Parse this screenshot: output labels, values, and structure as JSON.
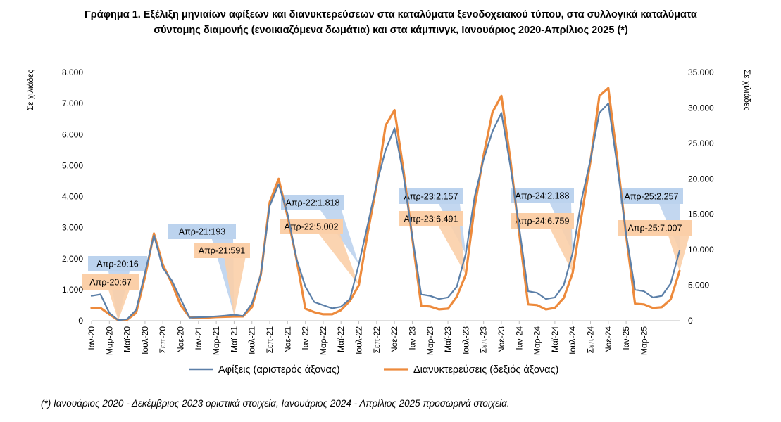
{
  "title_line1": "Γράφημα 1. Εξέλιξη μηνιαίων αφίξεων και διανυκτερεύσεων στα καταλύματα ξενοδοχειακού τύπου, στα συλλογικά καταλύματα",
  "title_line2": "σύντομης διαμονής (ενοικιαζόμενα δωμάτια) και στα κάμπινγκ, Ιανουάριος 2020-Απρίλιος 2025 (*)",
  "footnote": "(*) Ιανουάριος 2020 - Δεκέμβριος 2023 οριστικά στοιχεία, Ιανουάριος 2024 - Απρίλιος 2025 προσωρινά στοιχεία.",
  "colors": {
    "arrivals": "#5b7fa8",
    "overnights": "#ed8a3c",
    "arrivals_callout": "#bcd3ee",
    "overnights_callout": "#fbcfa8",
    "grid": "#d9d9d9"
  },
  "chart_data": {
    "type": "line",
    "ylabel_left": "Σε χιλιάδες",
    "ylabel_right": "Σε χιλιάδες",
    "ylim_left": [
      0,
      8000
    ],
    "ylim_right": [
      0,
      35000
    ],
    "yticks_left": [
      "0",
      "1.000",
      "2.000",
      "3.000",
      "4.000",
      "5.000",
      "6.000",
      "7.000",
      "8.000"
    ],
    "yticks_right": [
      "0",
      "5.000",
      "10.000",
      "15.000",
      "20.000",
      "25.000",
      "30.000",
      "35.000"
    ],
    "grid": "none",
    "legend_position": "bottom",
    "x_tick_labels": [
      "Ιαν-20",
      "Μαρ-20",
      "Μαϊ-20",
      "Ιουλ-20",
      "Σεπ-20",
      "Νοε-20",
      "Ιαν-21",
      "Μαρ-21",
      "Μαϊ-21",
      "Ιουλ-21",
      "Σεπ-21",
      "Νοε-21",
      "Ιαν-22",
      "Μαρ-22",
      "Μαϊ-22",
      "Ιουλ-22",
      "Σεπ-22",
      "Νοε-22",
      "Ιαν-23",
      "Μαρ-23",
      "Μαϊ-23",
      "Ιουλ-23",
      "Σεπ-23",
      "Νοε-23",
      "Ιαν-24",
      "Μαρ-24",
      "Μαϊ-24",
      "Ιουλ-24",
      "Σεπ-24",
      "Νοε-24",
      "Ιαν-25",
      "Μαρ-25"
    ],
    "series": [
      {
        "name": "Αφίξεις (αριστερός άξονας)",
        "axis": "left",
        "values": [
          800,
          850,
          250,
          16,
          50,
          350,
          1550,
          2750,
          1700,
          1300,
          700,
          100,
          110,
          120,
          140,
          160,
          193,
          150,
          550,
          1500,
          3700,
          4400,
          3450,
          2000,
          1100,
          600,
          500,
          400,
          450,
          700,
          1818,
          3100,
          4400,
          5500,
          6200,
          4700,
          2700,
          850,
          800,
          700,
          750,
          1100,
          2157,
          4000,
          5200,
          6100,
          6700,
          5000,
          3000,
          950,
          900,
          700,
          750,
          1150,
          2188,
          3900,
          5200,
          6700,
          7000,
          5000,
          2800,
          1000,
          950,
          750,
          800,
          1200,
          2257
        ]
      },
      {
        "name": "Διανυκτερεύσεις (δεξιός άξονας)",
        "axis": "right",
        "values": [
          1800,
          1800,
          900,
          67,
          150,
          1100,
          6200,
          12300,
          7900,
          5300,
          2200,
          500,
          400,
          450,
          520,
          560,
          591,
          600,
          1900,
          6500,
          16700,
          20000,
          14700,
          8700,
          1700,
          1200,
          900,
          900,
          1500,
          2800,
          5002,
          12400,
          19100,
          27500,
          29700,
          21300,
          11600,
          2100,
          2000,
          1600,
          1700,
          3400,
          6491,
          16100,
          23300,
          29400,
          31700,
          22800,
          12300,
          2300,
          2200,
          1600,
          1800,
          3200,
          6759,
          14800,
          22500,
          31700,
          32800,
          22900,
          12000,
          2400,
          2300,
          1800,
          1900,
          3000,
          7007
        ]
      }
    ],
    "annotations_arrivals": [
      {
        "label": "Απρ-20:16",
        "index": 3
      },
      {
        "label": "Απρ-21:193",
        "index": 16
      },
      {
        "label": "Απρ-22:1.818",
        "index": 30
      },
      {
        "label": "Απρ-23:2.157",
        "index": 42
      },
      {
        "label": "Απρ-24:2.188",
        "index": 54
      },
      {
        "label": "Απρ-25:2.257",
        "index": 66
      }
    ],
    "annotations_overnights": [
      {
        "label": "Απρ-20:67",
        "index": 3
      },
      {
        "label": "Απρ-21:591",
        "index": 16
      },
      {
        "label": "Απρ-22:5.002",
        "index": 30
      },
      {
        "label": "Απρ-23:6.491",
        "index": 42
      },
      {
        "label": "Απρ-24:6.759",
        "index": 54
      },
      {
        "label": "Απρ-25:7.007",
        "index": 66
      }
    ]
  }
}
